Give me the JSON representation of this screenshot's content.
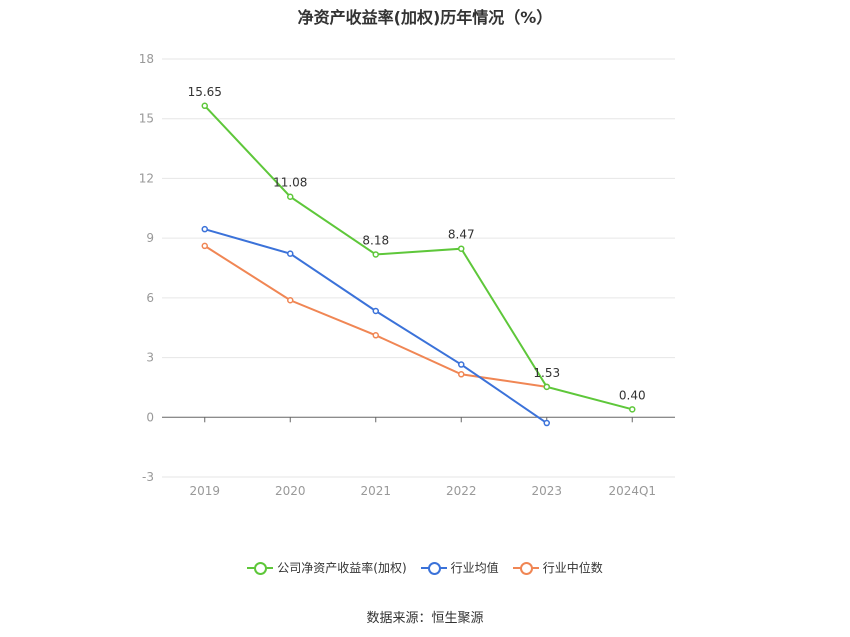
{
  "title": "净资产收益率(加权)历年情况（%）",
  "source": "数据来源：恒生聚源",
  "chart_data": {
    "type": "line",
    "categories": [
      "2019",
      "2020",
      "2021",
      "2022",
      "2023",
      "2024Q1"
    ],
    "ylim": [
      -3,
      18
    ],
    "yticks": [
      -3,
      0,
      3,
      6,
      9,
      12,
      15,
      18
    ],
    "grid": true,
    "legend_position": "bottom",
    "series": [
      {
        "name": "公司净资产收益率(加权)",
        "color": "#5ec73a",
        "values": [
          15.65,
          11.08,
          8.18,
          8.47,
          1.53,
          0.4
        ],
        "labels": [
          "15.65",
          "11.08",
          "8.18",
          "8.47",
          "1.53",
          "0.40"
        ]
      },
      {
        "name": "行业均值",
        "color": "#3b72d9",
        "values": [
          9.45,
          8.22,
          5.34,
          2.65,
          -0.29,
          null
        ]
      },
      {
        "name": "行业中位数",
        "color": "#f08654",
        "values": [
          8.61,
          5.88,
          4.12,
          2.16,
          1.53,
          null
        ]
      }
    ]
  }
}
